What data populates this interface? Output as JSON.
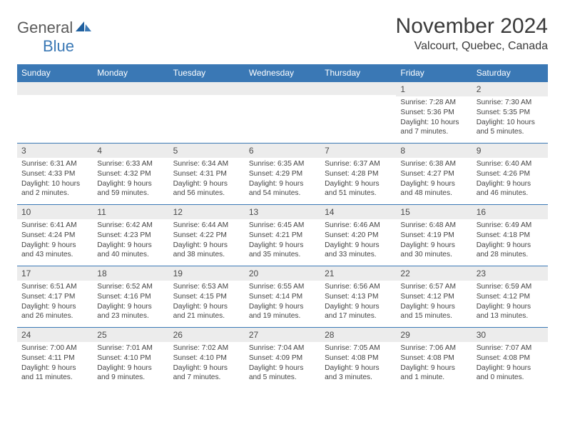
{
  "logo": {
    "part1": "General",
    "part2": "Blue"
  },
  "header": {
    "month_title": "November 2024",
    "location": "Valcourt, Quebec, Canada"
  },
  "colors": {
    "header_bg": "#3a78b5",
    "header_fg": "#ffffff",
    "daynum_bg": "#ececec",
    "border": "#3a78b5",
    "body_text": "#444444",
    "logo_gray": "#5a5a5a",
    "logo_blue": "#3a78b5"
  },
  "weekdays": [
    "Sunday",
    "Monday",
    "Tuesday",
    "Wednesday",
    "Thursday",
    "Friday",
    "Saturday"
  ],
  "weeks": [
    [
      {
        "n": "",
        "sunrise": "",
        "sunset": "",
        "daylight": ""
      },
      {
        "n": "",
        "sunrise": "",
        "sunset": "",
        "daylight": ""
      },
      {
        "n": "",
        "sunrise": "",
        "sunset": "",
        "daylight": ""
      },
      {
        "n": "",
        "sunrise": "",
        "sunset": "",
        "daylight": ""
      },
      {
        "n": "",
        "sunrise": "",
        "sunset": "",
        "daylight": ""
      },
      {
        "n": "1",
        "sunrise": "Sunrise: 7:28 AM",
        "sunset": "Sunset: 5:36 PM",
        "daylight": "Daylight: 10 hours and 7 minutes."
      },
      {
        "n": "2",
        "sunrise": "Sunrise: 7:30 AM",
        "sunset": "Sunset: 5:35 PM",
        "daylight": "Daylight: 10 hours and 5 minutes."
      }
    ],
    [
      {
        "n": "3",
        "sunrise": "Sunrise: 6:31 AM",
        "sunset": "Sunset: 4:33 PM",
        "daylight": "Daylight: 10 hours and 2 minutes."
      },
      {
        "n": "4",
        "sunrise": "Sunrise: 6:33 AM",
        "sunset": "Sunset: 4:32 PM",
        "daylight": "Daylight: 9 hours and 59 minutes."
      },
      {
        "n": "5",
        "sunrise": "Sunrise: 6:34 AM",
        "sunset": "Sunset: 4:31 PM",
        "daylight": "Daylight: 9 hours and 56 minutes."
      },
      {
        "n": "6",
        "sunrise": "Sunrise: 6:35 AM",
        "sunset": "Sunset: 4:29 PM",
        "daylight": "Daylight: 9 hours and 54 minutes."
      },
      {
        "n": "7",
        "sunrise": "Sunrise: 6:37 AM",
        "sunset": "Sunset: 4:28 PM",
        "daylight": "Daylight: 9 hours and 51 minutes."
      },
      {
        "n": "8",
        "sunrise": "Sunrise: 6:38 AM",
        "sunset": "Sunset: 4:27 PM",
        "daylight": "Daylight: 9 hours and 48 minutes."
      },
      {
        "n": "9",
        "sunrise": "Sunrise: 6:40 AM",
        "sunset": "Sunset: 4:26 PM",
        "daylight": "Daylight: 9 hours and 46 minutes."
      }
    ],
    [
      {
        "n": "10",
        "sunrise": "Sunrise: 6:41 AM",
        "sunset": "Sunset: 4:24 PM",
        "daylight": "Daylight: 9 hours and 43 minutes."
      },
      {
        "n": "11",
        "sunrise": "Sunrise: 6:42 AM",
        "sunset": "Sunset: 4:23 PM",
        "daylight": "Daylight: 9 hours and 40 minutes."
      },
      {
        "n": "12",
        "sunrise": "Sunrise: 6:44 AM",
        "sunset": "Sunset: 4:22 PM",
        "daylight": "Daylight: 9 hours and 38 minutes."
      },
      {
        "n": "13",
        "sunrise": "Sunrise: 6:45 AM",
        "sunset": "Sunset: 4:21 PM",
        "daylight": "Daylight: 9 hours and 35 minutes."
      },
      {
        "n": "14",
        "sunrise": "Sunrise: 6:46 AM",
        "sunset": "Sunset: 4:20 PM",
        "daylight": "Daylight: 9 hours and 33 minutes."
      },
      {
        "n": "15",
        "sunrise": "Sunrise: 6:48 AM",
        "sunset": "Sunset: 4:19 PM",
        "daylight": "Daylight: 9 hours and 30 minutes."
      },
      {
        "n": "16",
        "sunrise": "Sunrise: 6:49 AM",
        "sunset": "Sunset: 4:18 PM",
        "daylight": "Daylight: 9 hours and 28 minutes."
      }
    ],
    [
      {
        "n": "17",
        "sunrise": "Sunrise: 6:51 AM",
        "sunset": "Sunset: 4:17 PM",
        "daylight": "Daylight: 9 hours and 26 minutes."
      },
      {
        "n": "18",
        "sunrise": "Sunrise: 6:52 AM",
        "sunset": "Sunset: 4:16 PM",
        "daylight": "Daylight: 9 hours and 23 minutes."
      },
      {
        "n": "19",
        "sunrise": "Sunrise: 6:53 AM",
        "sunset": "Sunset: 4:15 PM",
        "daylight": "Daylight: 9 hours and 21 minutes."
      },
      {
        "n": "20",
        "sunrise": "Sunrise: 6:55 AM",
        "sunset": "Sunset: 4:14 PM",
        "daylight": "Daylight: 9 hours and 19 minutes."
      },
      {
        "n": "21",
        "sunrise": "Sunrise: 6:56 AM",
        "sunset": "Sunset: 4:13 PM",
        "daylight": "Daylight: 9 hours and 17 minutes."
      },
      {
        "n": "22",
        "sunrise": "Sunrise: 6:57 AM",
        "sunset": "Sunset: 4:12 PM",
        "daylight": "Daylight: 9 hours and 15 minutes."
      },
      {
        "n": "23",
        "sunrise": "Sunrise: 6:59 AM",
        "sunset": "Sunset: 4:12 PM",
        "daylight": "Daylight: 9 hours and 13 minutes."
      }
    ],
    [
      {
        "n": "24",
        "sunrise": "Sunrise: 7:00 AM",
        "sunset": "Sunset: 4:11 PM",
        "daylight": "Daylight: 9 hours and 11 minutes."
      },
      {
        "n": "25",
        "sunrise": "Sunrise: 7:01 AM",
        "sunset": "Sunset: 4:10 PM",
        "daylight": "Daylight: 9 hours and 9 minutes."
      },
      {
        "n": "26",
        "sunrise": "Sunrise: 7:02 AM",
        "sunset": "Sunset: 4:10 PM",
        "daylight": "Daylight: 9 hours and 7 minutes."
      },
      {
        "n": "27",
        "sunrise": "Sunrise: 7:04 AM",
        "sunset": "Sunset: 4:09 PM",
        "daylight": "Daylight: 9 hours and 5 minutes."
      },
      {
        "n": "28",
        "sunrise": "Sunrise: 7:05 AM",
        "sunset": "Sunset: 4:08 PM",
        "daylight": "Daylight: 9 hours and 3 minutes."
      },
      {
        "n": "29",
        "sunrise": "Sunrise: 7:06 AM",
        "sunset": "Sunset: 4:08 PM",
        "daylight": "Daylight: 9 hours and 1 minute."
      },
      {
        "n": "30",
        "sunrise": "Sunrise: 7:07 AM",
        "sunset": "Sunset: 4:08 PM",
        "daylight": "Daylight: 9 hours and 0 minutes."
      }
    ]
  ]
}
